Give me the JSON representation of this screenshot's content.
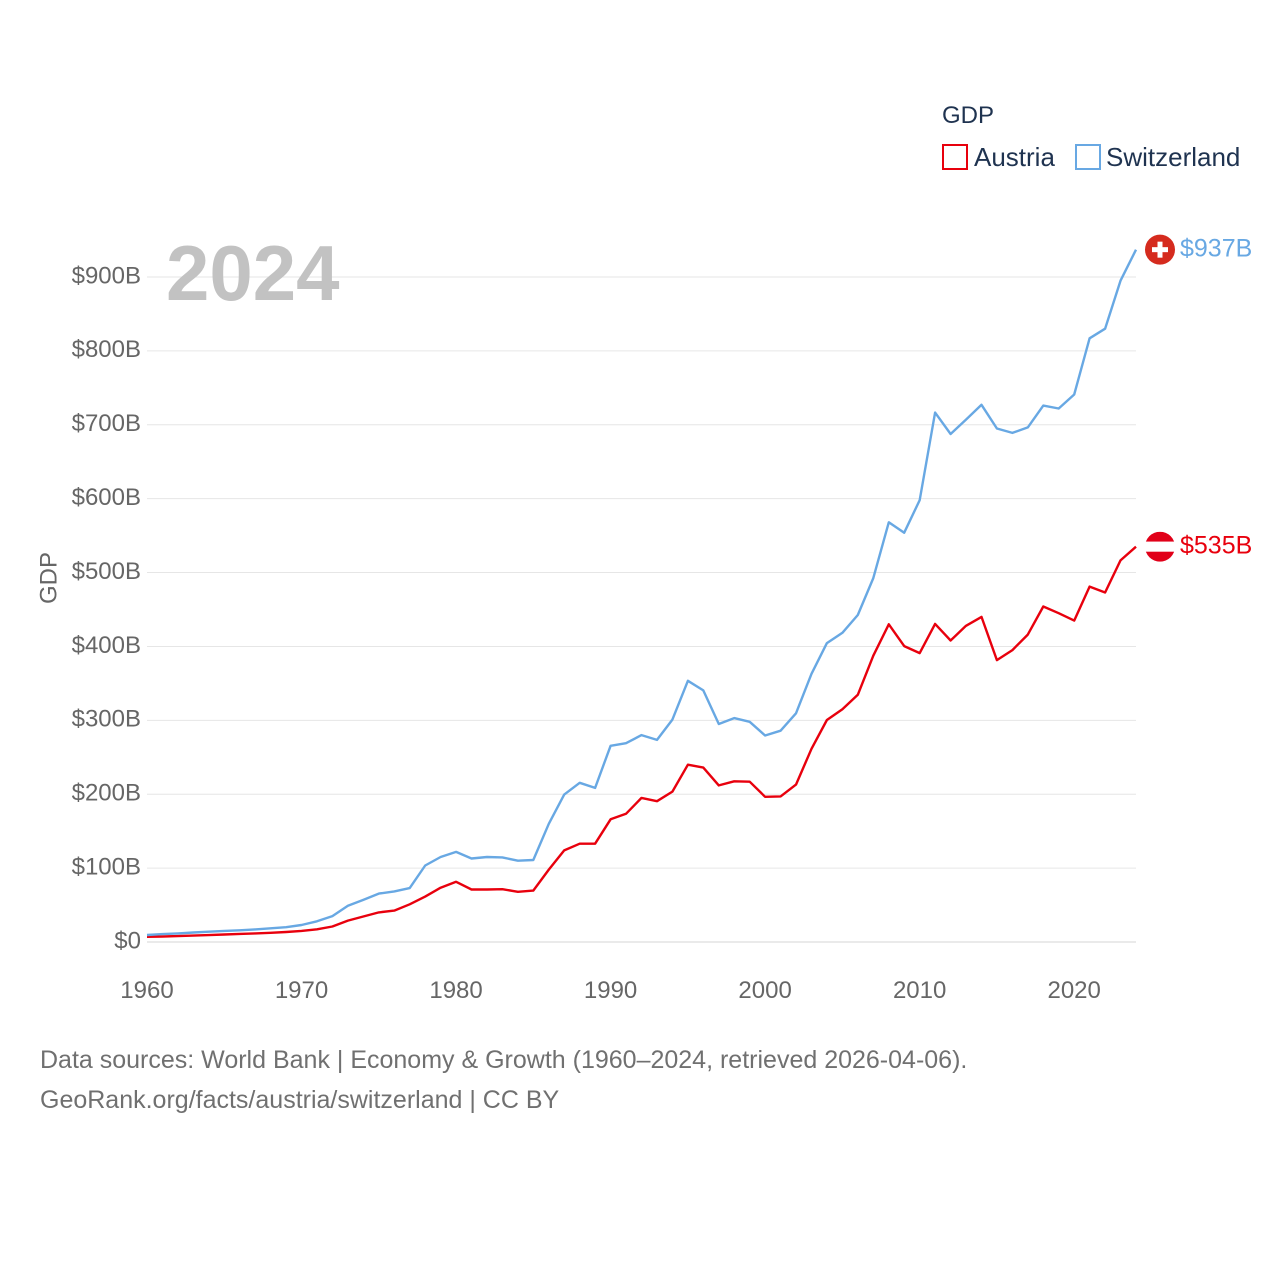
{
  "chart_data": {
    "type": "line",
    "title": "GDP",
    "highlight_year": "2024",
    "xlabel": "",
    "ylabel": "GDP",
    "xlim": [
      1960,
      2024
    ],
    "ylim": [
      0,
      900
    ],
    "x_ticks": [
      1960,
      1970,
      1980,
      1990,
      2000,
      2010,
      2020
    ],
    "x_tick_labels": [
      "1960",
      "1970",
      "1980",
      "1990",
      "2000",
      "2010",
      "2020"
    ],
    "y_ticks": [
      0,
      100,
      200,
      300,
      400,
      500,
      600,
      700,
      800,
      900
    ],
    "y_tick_labels": [
      "$0",
      "$100B",
      "$200B",
      "$300B",
      "$400B",
      "$500B",
      "$600B",
      "$700B",
      "$800B",
      "$900B"
    ],
    "grid": true,
    "legend_position": "top-right",
    "x": [
      1960,
      1961,
      1962,
      1963,
      1964,
      1965,
      1966,
      1967,
      1968,
      1969,
      1970,
      1971,
      1972,
      1973,
      1974,
      1975,
      1976,
      1977,
      1978,
      1979,
      1980,
      1981,
      1982,
      1983,
      1984,
      1985,
      1986,
      1987,
      1988,
      1989,
      1990,
      1991,
      1992,
      1993,
      1994,
      1995,
      1996,
      1997,
      1998,
      1999,
      2000,
      2001,
      2002,
      2003,
      2004,
      2005,
      2006,
      2007,
      2008,
      2009,
      2010,
      2011,
      2012,
      2013,
      2014,
      2015,
      2016,
      2017,
      2018,
      2019,
      2020,
      2021,
      2022,
      2023,
      2024
    ],
    "series": [
      {
        "name": "Austria",
        "color": "#e8000d",
        "end_label": "$535B",
        "flag": "austria-flag",
        "values": [
          7,
          7.5,
          8,
          8.6,
          9.4,
          10.2,
          11,
          11.6,
          12.4,
          13.5,
          15,
          17.2,
          21,
          29,
          34.5,
          40,
          42.5,
          51,
          61.5,
          73.5,
          81.5,
          71,
          71,
          71.5,
          68,
          69.5,
          98,
          124,
          133,
          133,
          166,
          173.5,
          195,
          190.5,
          203.5,
          240,
          236,
          212,
          217.5,
          217,
          196.5,
          197,
          213,
          261.5,
          300.5,
          315,
          334.5,
          387.5,
          430,
          400.5,
          391,
          430.5,
          408,
          428,
          440,
          381.5,
          395,
          416,
          454,
          445,
          435,
          481,
          473,
          516.5,
          535
        ]
      },
      {
        "name": "Switzerland",
        "color": "#68a8e3",
        "end_label": "$937B",
        "flag": "switzerland-flag",
        "values": [
          9.5,
          10.7,
          11.7,
          12.8,
          14,
          15,
          15.8,
          17,
          18.5,
          20,
          23,
          28,
          35,
          49,
          57,
          65.5,
          68.5,
          73,
          103.5,
          115,
          122,
          113,
          115,
          114.5,
          110,
          111,
          160,
          199.5,
          215.5,
          208.5,
          265.5,
          269,
          280,
          273.5,
          301,
          353.5,
          340.5,
          295,
          303,
          298,
          279.5,
          286,
          309.5,
          363,
          404.5,
          418.5,
          442.5,
          492.5,
          568,
          554,
          598,
          716.5,
          687.5,
          707,
          727,
          695,
          689,
          696.5,
          726,
          722,
          741,
          817,
          830,
          895,
          937
        ]
      }
    ],
    "legend_title": "GDP"
  },
  "footer": {
    "line1": "Data sources: World Bank | Economy & Growth (1960–2024, retrieved 2026-04-06).",
    "line2": "GeoRank.org/facts/austria/switzerland | CC BY"
  }
}
